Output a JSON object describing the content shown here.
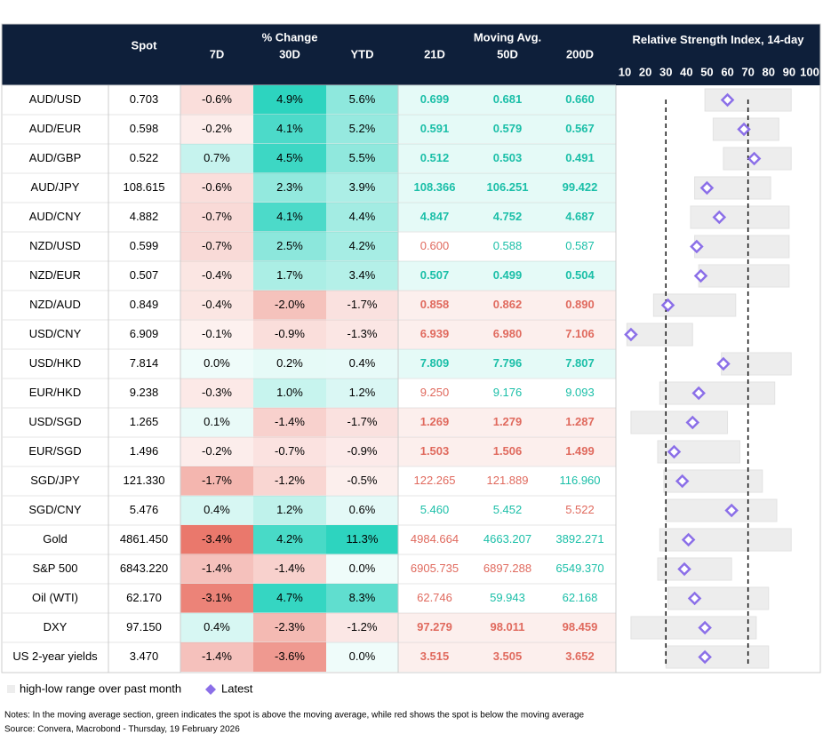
{
  "header": {
    "spot": "Spot",
    "pct_change": "% Change",
    "moving_avg": "Moving Avg.",
    "rsi_title": "Relative Strength Index, 14-day",
    "columns": [
      "7D",
      "30D",
      "YTD",
      "21D",
      "50D",
      "200D"
    ]
  },
  "table": {
    "rows": [
      {
        "name": "AUD/USD",
        "spot": "0.703",
        "d7": "-0.6%",
        "d30": "4.9%",
        "ytd": "5.6%",
        "ma21": "0.699",
        "ma50": "0.681",
        "ma200": "0.660",
        "ma_emphasis": true
      },
      {
        "name": "AUD/EUR",
        "spot": "0.598",
        "d7": "-0.2%",
        "d30": "4.1%",
        "ytd": "5.2%",
        "ma21": "0.591",
        "ma50": "0.579",
        "ma200": "0.567",
        "ma_emphasis": true
      },
      {
        "name": "AUD/GBP",
        "spot": "0.522",
        "d7": "0.7%",
        "d30": "4.5%",
        "ytd": "5.5%",
        "ma21": "0.512",
        "ma50": "0.503",
        "ma200": "0.491",
        "ma_emphasis": true
      },
      {
        "name": "AUD/JPY",
        "spot": "108.615",
        "d7": "-0.6%",
        "d30": "2.3%",
        "ytd": "3.9%",
        "ma21": "108.366",
        "ma50": "106.251",
        "ma200": "99.422",
        "ma_emphasis": true
      },
      {
        "name": "AUD/CNY",
        "spot": "4.882",
        "d7": "-0.7%",
        "d30": "4.1%",
        "ytd": "4.4%",
        "ma21": "4.847",
        "ma50": "4.752",
        "ma200": "4.687",
        "ma_emphasis": true
      },
      {
        "name": "NZD/USD",
        "spot": "0.599",
        "d7": "-0.7%",
        "d30": "2.5%",
        "ytd": "4.2%",
        "ma21": "0.600",
        "ma50": "0.588",
        "ma200": "0.587",
        "ma_emphasis": false
      },
      {
        "name": "NZD/EUR",
        "spot": "0.507",
        "d7": "-0.4%",
        "d30": "1.7%",
        "ytd": "3.4%",
        "ma21": "0.507",
        "ma50": "0.499",
        "ma200": "0.504",
        "ma_emphasis": true
      },
      {
        "name": "NZD/AUD",
        "spot": "0.849",
        "d7": "-0.4%",
        "d30": "-2.0%",
        "ytd": "-1.7%",
        "ma21": "0.858",
        "ma50": "0.862",
        "ma200": "0.890",
        "ma_emphasis": true
      },
      {
        "name": "USD/CNY",
        "spot": "6.909",
        "d7": "-0.1%",
        "d30": "-0.9%",
        "ytd": "-1.3%",
        "ma21": "6.939",
        "ma50": "6.980",
        "ma200": "7.106",
        "ma_emphasis": true
      },
      {
        "name": "USD/HKD",
        "spot": "7.814",
        "d7": "0.0%",
        "d30": "0.2%",
        "ytd": "0.4%",
        "ma21": "7.809",
        "ma50": "7.796",
        "ma200": "7.807",
        "ma_emphasis": true
      },
      {
        "name": "EUR/HKD",
        "spot": "9.238",
        "d7": "-0.3%",
        "d30": "1.0%",
        "ytd": "1.2%",
        "ma21": "9.250",
        "ma50": "9.176",
        "ma200": "9.093",
        "ma_emphasis": false
      },
      {
        "name": "USD/SGD",
        "spot": "1.265",
        "d7": "0.1%",
        "d30": "-1.4%",
        "ytd": "-1.7%",
        "ma21": "1.269",
        "ma50": "1.279",
        "ma200": "1.287",
        "ma_emphasis": true
      },
      {
        "name": "EUR/SGD",
        "spot": "1.496",
        "d7": "-0.2%",
        "d30": "-0.7%",
        "ytd": "-0.9%",
        "ma21": "1.503",
        "ma50": "1.506",
        "ma200": "1.499",
        "ma_emphasis": true
      },
      {
        "name": "SGD/JPY",
        "spot": "121.330",
        "d7": "-1.7%",
        "d30": "-1.2%",
        "ytd": "-0.5%",
        "ma21": "122.265",
        "ma50": "121.889",
        "ma200": "116.960",
        "ma_emphasis": false
      },
      {
        "name": "SGD/CNY",
        "spot": "5.476",
        "d7": "0.4%",
        "d30": "1.2%",
        "ytd": "0.6%",
        "ma21": "5.460",
        "ma50": "5.452",
        "ma200": "5.522",
        "ma_emphasis": false
      },
      {
        "name": "Gold",
        "spot": "4861.450",
        "d7": "-3.4%",
        "d30": "4.2%",
        "ytd": "11.3%",
        "ma21": "4984.664",
        "ma50": "4663.207",
        "ma200": "3892.271",
        "ma_emphasis": false
      },
      {
        "name": "S&P 500",
        "spot": "6843.220",
        "d7": "-1.4%",
        "d30": "-1.4%",
        "ytd": "0.0%",
        "ma21": "6905.735",
        "ma50": "6897.288",
        "ma200": "6549.370",
        "ma_emphasis": false
      },
      {
        "name": "Oil (WTI)",
        "spot": "62.170",
        "d7": "-3.1%",
        "d30": "4.7%",
        "ytd": "8.3%",
        "ma21": "62.746",
        "ma50": "59.943",
        "ma200": "62.168",
        "ma_emphasis": false
      },
      {
        "name": "DXY",
        "spot": "97.150",
        "d7": "0.4%",
        "d30": "-2.3%",
        "ytd": "-1.2%",
        "ma21": "97.279",
        "ma50": "98.011",
        "ma200": "98.459",
        "ma_emphasis": true
      },
      {
        "name": "US 2-year yields",
        "spot": "3.470",
        "d7": "-1.4%",
        "d30": "-3.6%",
        "ytd": "0.0%",
        "ma21": "3.515",
        "ma50": "3.505",
        "ma200": "3.652",
        "ma_emphasis": true
      }
    ]
  },
  "rsi": {
    "xlim": [
      10,
      100
    ],
    "xticks": [
      10,
      20,
      30,
      40,
      50,
      60,
      70,
      80,
      90,
      100
    ],
    "reference_lines": [
      30,
      70
    ],
    "low": [
      49,
      53,
      58,
      44,
      42,
      44,
      46,
      24,
      11,
      57,
      27,
      13,
      26,
      29,
      30,
      27,
      26,
      31,
      13,
      30
    ],
    "high": [
      91,
      85,
      91,
      81,
      90,
      90,
      90,
      64,
      43,
      91,
      83,
      60,
      66,
      77,
      84,
      91,
      62,
      80,
      74,
      80
    ],
    "latest": [
      60,
      68,
      73,
      50,
      56,
      45,
      47,
      31,
      13,
      58,
      46,
      43,
      34,
      38,
      62,
      41,
      39,
      44,
      49,
      49
    ],
    "range_color": "#ededed",
    "latest_color": "#8b6fe8"
  },
  "legend": {
    "range": "high-low range over past month",
    "latest": "Latest"
  },
  "footer": {
    "notes": "Notes: In the moving average section, green indicates the spot is above the moving average, while red shows the spot is below the moving average",
    "source": "Source: Convera, Macrobond - Thursday, 19 February 2026"
  }
}
